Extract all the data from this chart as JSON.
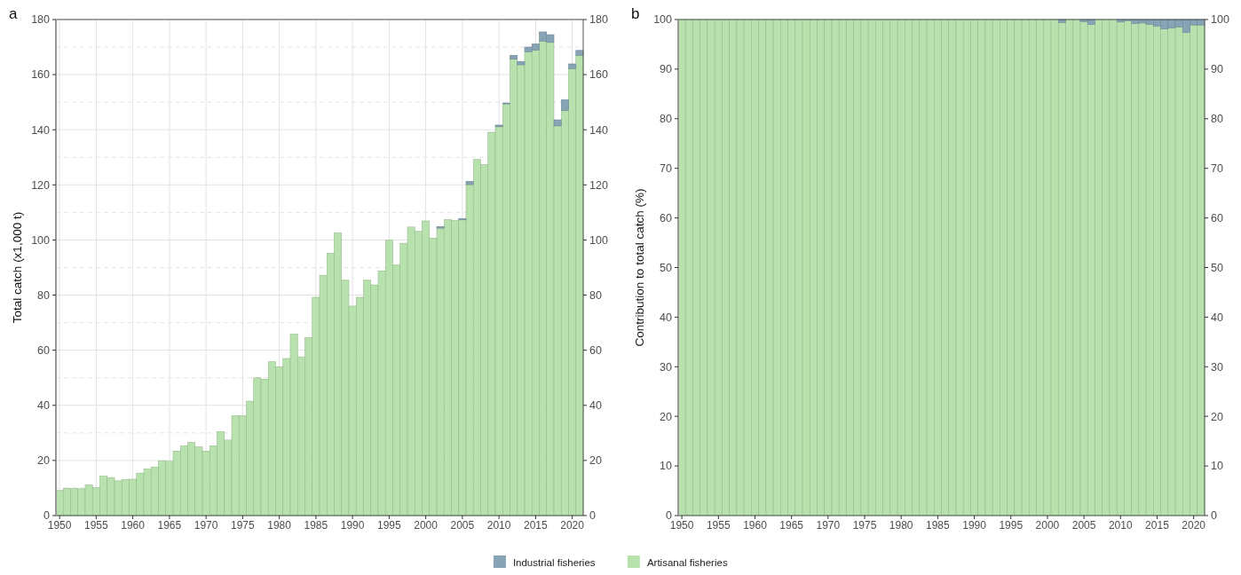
{
  "chart_data": [
    {
      "type": "bar",
      "title": "a",
      "ylabel": "Total catch (x1,000 t)",
      "stacked": true,
      "grid": true,
      "legend": "bottom",
      "x": [
        1950,
        1951,
        1952,
        1953,
        1954,
        1955,
        1956,
        1957,
        1958,
        1959,
        1960,
        1961,
        1962,
        1963,
        1964,
        1965,
        1966,
        1967,
        1968,
        1969,
        1970,
        1971,
        1972,
        1973,
        1974,
        1975,
        1976,
        1977,
        1978,
        1979,
        1980,
        1981,
        1982,
        1983,
        1984,
        1985,
        1986,
        1987,
        1988,
        1989,
        1990,
        1991,
        1992,
        1993,
        1994,
        1995,
        1996,
        1997,
        1998,
        1999,
        2000,
        2001,
        2002,
        2003,
        2004,
        2005,
        2006,
        2007,
        2008,
        2009,
        2010,
        2011,
        2012,
        2013,
        2014,
        2015,
        2016,
        2017,
        2018,
        2019,
        2020,
        2021
      ],
      "xlim": [
        1949.5,
        2021.5
      ],
      "xticks": [
        1950,
        1955,
        1960,
        1965,
        1970,
        1975,
        1980,
        1985,
        1990,
        1995,
        2000,
        2005,
        2010,
        2015,
        2020
      ],
      "ylim": [
        0,
        180
      ],
      "yticks": [
        0,
        20,
        40,
        60,
        80,
        100,
        120,
        140,
        160,
        180
      ],
      "y2lim": [
        0,
        180
      ],
      "y2ticks": [
        0,
        20,
        40,
        60,
        80,
        100,
        120,
        140,
        160,
        180
      ],
      "series": [
        {
          "name": "Artisanal fisheries",
          "color": "#b8e2ad",
          "values": [
            9.1,
            9.9,
            9.8,
            9.7,
            11.1,
            10.1,
            14.3,
            13.8,
            12.6,
            13.1,
            13.2,
            15.4,
            16.9,
            17.6,
            19.8,
            19.7,
            23.4,
            25.3,
            26.5,
            24.9,
            23.4,
            25.3,
            30.4,
            27.4,
            36.2,
            36.2,
            41.5,
            50.0,
            49.5,
            55.8,
            54.0,
            57.0,
            65.8,
            57.6,
            64.6,
            79.2,
            87.2,
            95.1,
            102.5,
            85.4,
            76.0,
            79.2,
            85.4,
            83.7,
            88.8,
            99.9,
            90.9,
            98.8,
            104.7,
            103.1,
            106.9,
            100.7,
            104.3,
            107.4,
            107.1,
            107.3,
            120.1,
            129.2,
            127.3,
            139.1,
            141.1,
            149.4,
            165.6,
            163.6,
            168.3,
            168.9,
            172.2,
            171.7,
            141.4,
            147.0,
            162.2,
            167.0
          ]
        },
        {
          "name": "Industrial fisheries",
          "color": "#87a3b6",
          "values": [
            0,
            0,
            0,
            0,
            0,
            0,
            0,
            0,
            0,
            0,
            0,
            0,
            0,
            0,
            0,
            0,
            0,
            0,
            0,
            0,
            0,
            0,
            0,
            0,
            0,
            0,
            0,
            0,
            0,
            0,
            0,
            0,
            0,
            0,
            0,
            0,
            0,
            0,
            0,
            0,
            0,
            0,
            0,
            0,
            0,
            0,
            0,
            0,
            0,
            0,
            0,
            0,
            0.6,
            0,
            0,
            0.5,
            1.2,
            0,
            0,
            0,
            0.6,
            0.3,
            1.4,
            1.2,
            1.7,
            2.3,
            3.3,
            2.8,
            2.2,
            3.9,
            1.7,
            1.8
          ]
        }
      ]
    },
    {
      "type": "bar",
      "title": "b",
      "ylabel": "Contribution to total catch (%)",
      "stacked": true,
      "x": [
        1950,
        1951,
        1952,
        1953,
        1954,
        1955,
        1956,
        1957,
        1958,
        1959,
        1960,
        1961,
        1962,
        1963,
        1964,
        1965,
        1966,
        1967,
        1968,
        1969,
        1970,
        1971,
        1972,
        1973,
        1974,
        1975,
        1976,
        1977,
        1978,
        1979,
        1980,
        1981,
        1982,
        1983,
        1984,
        1985,
        1986,
        1987,
        1988,
        1989,
        1990,
        1991,
        1992,
        1993,
        1994,
        1995,
        1996,
        1997,
        1998,
        1999,
        2000,
        2001,
        2002,
        2003,
        2004,
        2005,
        2006,
        2007,
        2008,
        2009,
        2010,
        2011,
        2012,
        2013,
        2014,
        2015,
        2016,
        2017,
        2018,
        2019,
        2020,
        2021
      ],
      "xlim": [
        1949.5,
        2021.5
      ],
      "xticks": [
        1950,
        1955,
        1960,
        1965,
        1970,
        1975,
        1980,
        1985,
        1990,
        1995,
        2000,
        2005,
        2010,
        2015,
        2020
      ],
      "ylim": [
        0,
        100
      ],
      "yticks": [
        0,
        10,
        20,
        30,
        40,
        50,
        60,
        70,
        80,
        90,
        100
      ],
      "y2lim": [
        0,
        100
      ],
      "y2ticks": [
        0,
        10,
        20,
        30,
        40,
        50,
        60,
        70,
        80,
        90,
        100
      ],
      "series": [
        {
          "color": "#b8e2ad",
          "values": [
            100,
            100,
            100,
            100,
            100,
            100,
            100,
            100,
            100,
            100,
            100,
            100,
            100,
            100,
            100,
            100,
            100,
            100,
            100,
            100,
            100,
            100,
            100,
            100,
            100,
            100,
            100,
            100,
            100,
            100,
            100,
            100,
            100,
            100,
            100,
            100,
            100,
            100,
            100,
            100,
            100,
            100,
            100,
            100,
            100,
            100,
            100,
            100,
            100,
            100,
            100,
            100,
            99.4,
            100,
            100,
            99.6,
            99.0,
            100,
            100,
            100,
            99.5,
            99.8,
            99.2,
            99.3,
            99.0,
            98.7,
            98.1,
            98.3,
            98.5,
            97.4,
            98.9,
            98.9
          ]
        },
        {
          "color": "#87a3b6",
          "values": [
            0,
            0,
            0,
            0,
            0,
            0,
            0,
            0,
            0,
            0,
            0,
            0,
            0,
            0,
            0,
            0,
            0,
            0,
            0,
            0,
            0,
            0,
            0,
            0,
            0,
            0,
            0,
            0,
            0,
            0,
            0,
            0,
            0,
            0,
            0,
            0,
            0,
            0,
            0,
            0,
            0,
            0,
            0,
            0,
            0,
            0,
            0,
            0,
            0,
            0,
            0,
            0,
            0.6,
            0,
            0,
            0.4,
            1.0,
            0,
            0,
            0,
            0.5,
            0.2,
            0.8,
            0.7,
            1.0,
            1.3,
            1.9,
            1.7,
            1.5,
            2.6,
            1.1,
            1.1
          ]
        }
      ]
    }
  ]
}
